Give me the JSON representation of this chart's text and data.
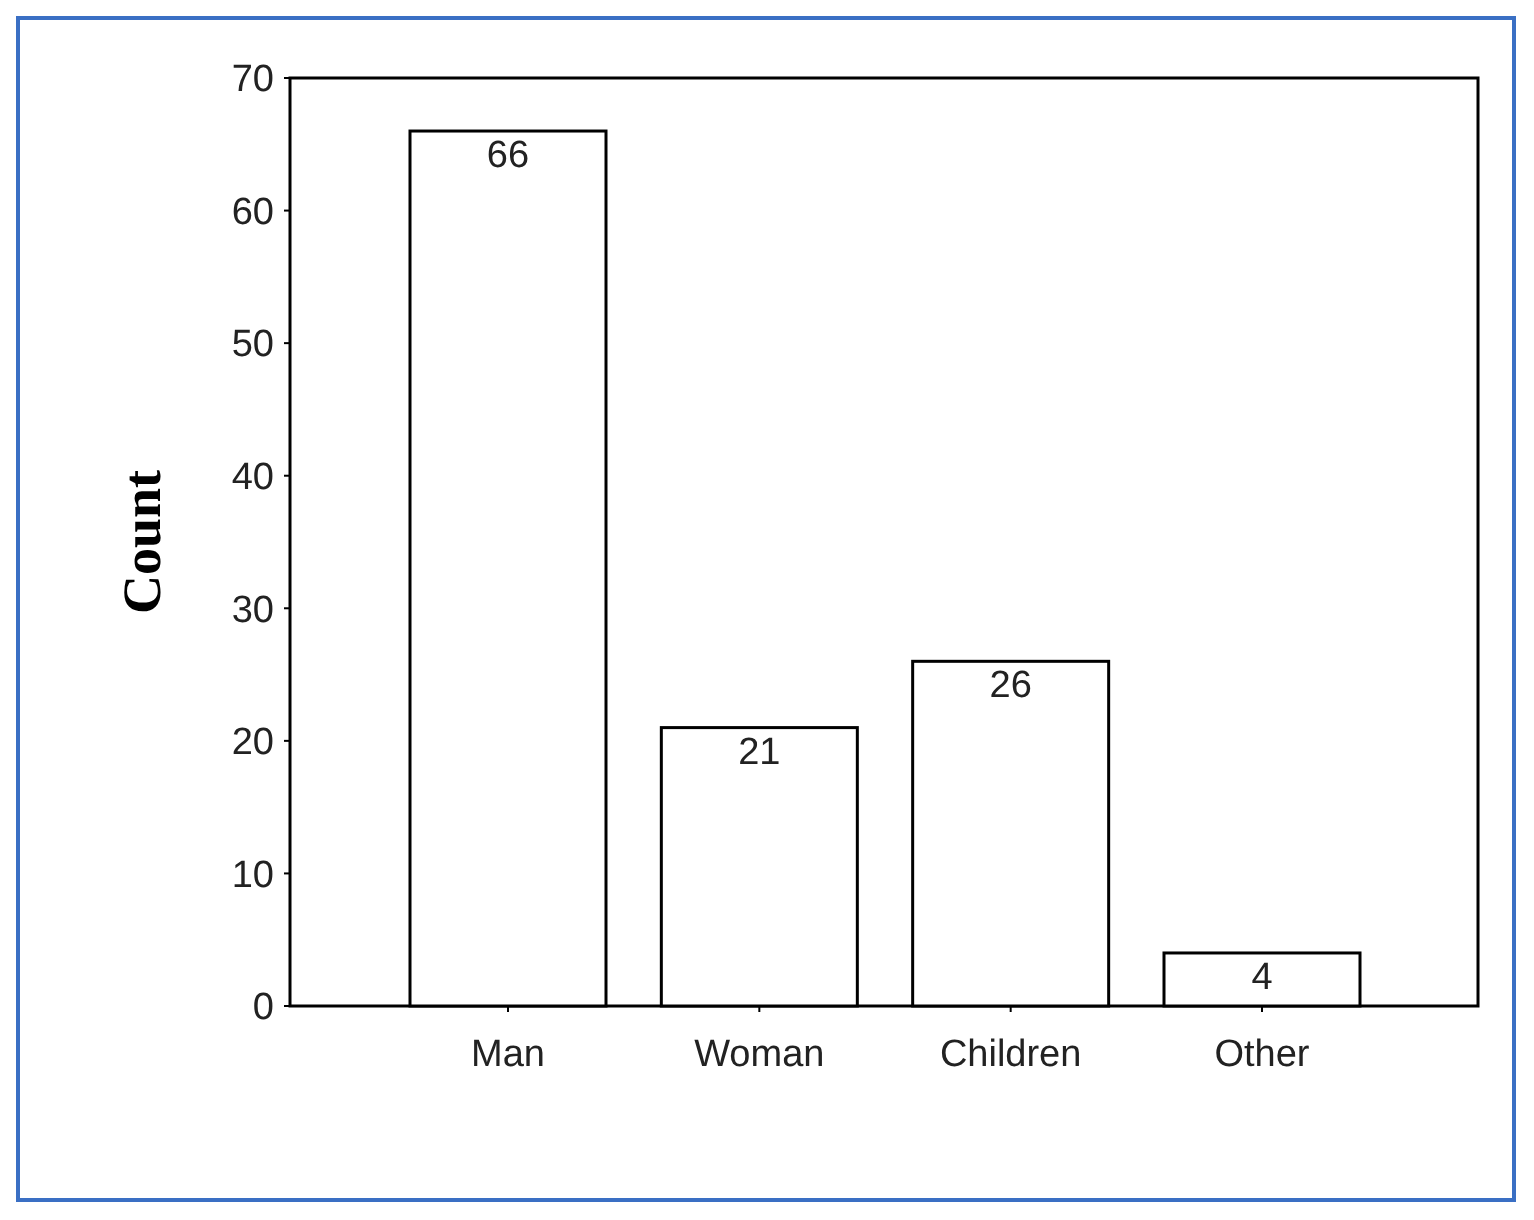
{
  "chart_data": {
    "type": "bar",
    "ylabel": "Count",
    "categories": [
      "Man",
      "Woman",
      "Children",
      "Other"
    ],
    "values": [
      66,
      21,
      26,
      4
    ],
    "color": "#ffffff",
    "ylim": [
      0,
      70
    ],
    "yticks": [
      0,
      10,
      20,
      30,
      40,
      50,
      60,
      70
    ],
    "data_labels": true,
    "grid": false
  }
}
